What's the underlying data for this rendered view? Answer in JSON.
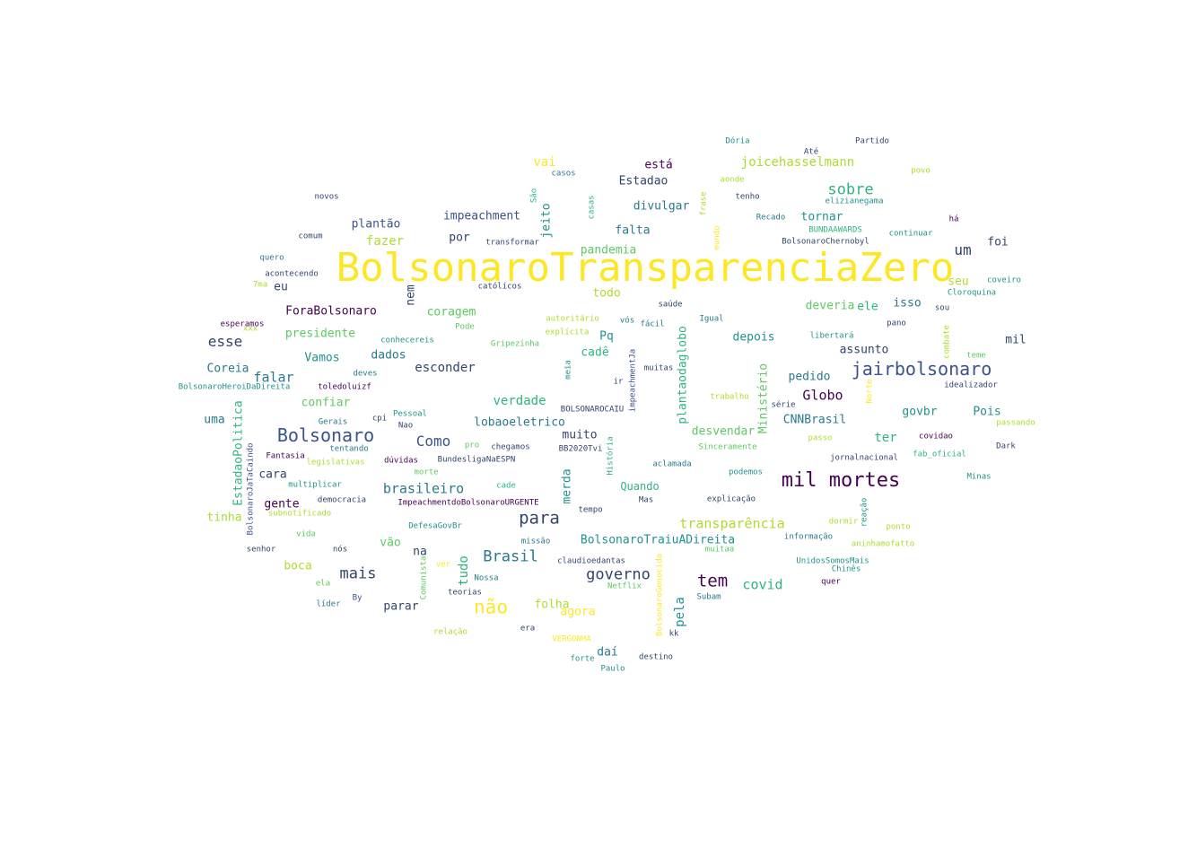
{
  "palette": {
    "dark_purple": "#440154",
    "indigo": "#3b528b",
    "navy": "#31446b",
    "blue": "#2a788e",
    "teal": "#21918c",
    "green": "#2fb47c",
    "light_green": "#5ec962",
    "lime": "#addc30",
    "yellow": "#fde725"
  },
  "words": [
    {
      "text": "BolsonaroTransparenciaZero",
      "size": 44,
      "color": "yellow"
    },
    {
      "text": "mil mortes",
      "size": 22,
      "color": "dark_purple"
    },
    {
      "text": "jairbolsonaro",
      "size": 20,
      "color": "indigo"
    },
    {
      "text": "Bolsonaro",
      "size": 20,
      "color": "indigo"
    },
    {
      "text": "não",
      "size": 21,
      "color": "yellow"
    },
    {
      "text": "para",
      "size": 19,
      "color": "navy"
    },
    {
      "text": "tem",
      "size": 19,
      "color": "dark_purple"
    },
    {
      "text": "Brasil",
      "size": 17,
      "color": "blue"
    },
    {
      "text": "sobre",
      "size": 17,
      "color": "green"
    },
    {
      "text": "governo",
      "size": 17,
      "color": "navy"
    },
    {
      "text": "mais",
      "size": 17,
      "color": "navy"
    },
    {
      "text": "Como",
      "size": 16,
      "color": "indigo"
    },
    {
      "text": "um",
      "size": 16,
      "color": "navy"
    },
    {
      "text": "esse",
      "size": 16,
      "color": "navy"
    },
    {
      "text": "Globo",
      "size": 15,
      "color": "dark_purple"
    },
    {
      "text": "falar",
      "size": 15,
      "color": "blue"
    },
    {
      "text": "covid",
      "size": 15,
      "color": "green"
    },
    {
      "text": "brasileiro",
      "size": 15,
      "color": "blue"
    },
    {
      "text": "transparência",
      "size": 15,
      "color": "lime"
    },
    {
      "text": "joicehasselmann",
      "size": 14,
      "color": "lime"
    },
    {
      "text": "verdade",
      "size": 14,
      "color": "green"
    },
    {
      "text": "esconder",
      "size": 14,
      "color": "navy"
    },
    {
      "text": "ter",
      "size": 14,
      "color": "green"
    },
    {
      "text": "vai",
      "size": 14,
      "color": "yellow"
    },
    {
      "text": "fazer",
      "size": 14,
      "color": "lime"
    },
    {
      "text": "tudo",
      "size": 14,
      "color": "green"
    },
    {
      "text": "pela",
      "size": 14,
      "color": "teal"
    },
    {
      "text": "Quando",
      "size": 12,
      "color": "green"
    },
    {
      "text": "isso",
      "size": 13,
      "color": "blue"
    },
    {
      "text": "muito",
      "size": 13,
      "color": "navy"
    },
    {
      "text": "desvendar",
      "size": 13,
      "color": "light_green"
    },
    {
      "text": "CNNBrasil",
      "size": 13,
      "color": "blue"
    },
    {
      "text": "pedido",
      "size": 13,
      "color": "blue"
    },
    {
      "text": "falta",
      "size": 13,
      "color": "blue"
    },
    {
      "text": "divulgar",
      "size": 13,
      "color": "blue"
    },
    {
      "text": "impeachment",
      "size": 13,
      "color": "indigo"
    },
    {
      "text": "plantão",
      "size": 13,
      "color": "indigo"
    },
    {
      "text": "coragem",
      "size": 13,
      "color": "light_green"
    },
    {
      "text": "presidente",
      "size": 13,
      "color": "light_green"
    },
    {
      "text": "ForaBolsonaro",
      "size": 13,
      "color": "dark_purple"
    },
    {
      "text": "Coreia",
      "size": 13,
      "color": "blue"
    },
    {
      "text": "Vamos",
      "size": 13,
      "color": "teal"
    },
    {
      "text": "dados",
      "size": 13,
      "color": "blue"
    },
    {
      "text": "confiar",
      "size": 13,
      "color": "light_green"
    },
    {
      "text": "lobaoeletrico",
      "size": 13,
      "color": "blue"
    },
    {
      "text": "Pq",
      "size": 13,
      "color": "teal"
    },
    {
      "text": "cadê",
      "size": 13,
      "color": "green"
    },
    {
      "text": "pandemia",
      "size": 13,
      "color": "light_green"
    },
    {
      "text": "todo",
      "size": 13,
      "color": "lime"
    },
    {
      "text": "deveria",
      "size": 13,
      "color": "light_green"
    },
    {
      "text": "ele",
      "size": 13,
      "color": "green"
    },
    {
      "text": "depois",
      "size": 13,
      "color": "teal"
    },
    {
      "text": "assunto",
      "size": 13,
      "color": "navy"
    },
    {
      "text": "tornar",
      "size": 13,
      "color": "teal"
    },
    {
      "text": "Estadao",
      "size": 13,
      "color": "navy"
    },
    {
      "text": "está",
      "size": 13,
      "color": "dark_purple"
    },
    {
      "text": "por",
      "size": 13,
      "color": "navy"
    },
    {
      "text": "foi",
      "size": 13,
      "color": "navy"
    },
    {
      "text": "mil",
      "size": 13,
      "color": "navy"
    },
    {
      "text": "seu",
      "size": 13,
      "color": "lime"
    },
    {
      "text": "govbr",
      "size": 13,
      "color": "teal"
    },
    {
      "text": "Pois",
      "size": 13,
      "color": "teal"
    },
    {
      "text": "eu",
      "size": 13,
      "color": "navy"
    },
    {
      "text": "uma",
      "size": 13,
      "color": "blue"
    },
    {
      "text": "cara",
      "size": 13,
      "color": "navy"
    },
    {
      "text": "gente",
      "size": 13,
      "color": "dark_purple"
    },
    {
      "text": "tinha",
      "size": 13,
      "color": "lime"
    },
    {
      "text": "vão",
      "size": 13,
      "color": "light_green"
    },
    {
      "text": "na",
      "size": 13,
      "color": "navy"
    },
    {
      "text": "boca",
      "size": 13,
      "color": "lime"
    },
    {
      "text": "parar",
      "size": 13,
      "color": "navy"
    },
    {
      "text": "folha",
      "size": 13,
      "color": "lime"
    },
    {
      "text": "agora",
      "size": 13,
      "color": "yellow"
    },
    {
      "text": "daí",
      "size": 13,
      "color": "blue"
    },
    {
      "text": "BolsonaroTraiuADireita",
      "size": 13,
      "color": "teal"
    },
    {
      "text": "nem",
      "size": 13,
      "color": "navy"
    },
    {
      "text": "jeito",
      "size": 13,
      "color": "teal"
    },
    {
      "text": "merda",
      "size": 13,
      "color": "teal"
    },
    {
      "text": "plantaodaglobo",
      "size": 13,
      "color": "green"
    },
    {
      "text": "Ministério",
      "size": 13,
      "color": "light_green"
    },
    {
      "text": "EstadaoPolitica",
      "size": 13,
      "color": "green"
    },
    {
      "text": "Dória",
      "size": 9,
      "color": "teal"
    },
    {
      "text": "Partido",
      "size": 9,
      "color": "navy"
    },
    {
      "text": "Até",
      "size": 9,
      "color": "navy"
    },
    {
      "text": "casos",
      "size": 9,
      "color": "blue"
    },
    {
      "text": "aonde",
      "size": 9,
      "color": "lime"
    },
    {
      "text": "povo",
      "size": 9,
      "color": "lime"
    },
    {
      "text": "novos",
      "size": 9,
      "color": "navy"
    },
    {
      "text": "tenho",
      "size": 9,
      "color": "navy"
    },
    {
      "text": "elizianegama",
      "size": 9,
      "color": "teal"
    },
    {
      "text": "Recado",
      "size": 9,
      "color": "blue"
    },
    {
      "text": "há",
      "size": 9,
      "color": "dark_purple"
    },
    {
      "text": "comum",
      "size": 9,
      "color": "navy"
    },
    {
      "text": "BUNDAAWARDS",
      "size": 9,
      "color": "green"
    },
    {
      "text": "continuar",
      "size": 9,
      "color": "teal"
    },
    {
      "text": "transformar",
      "size": 9,
      "color": "navy"
    },
    {
      "text": "BolsonaroChernobyl",
      "size": 9,
      "color": "navy"
    },
    {
      "text": "quero",
      "size": 9,
      "color": "blue"
    },
    {
      "text": "acontecendo",
      "size": 9,
      "color": "navy"
    },
    {
      "text": "7ma",
      "size": 9,
      "color": "lime"
    },
    {
      "text": "católicos",
      "size": 9,
      "color": "navy"
    },
    {
      "text": "coveiro",
      "size": 9,
      "color": "teal"
    },
    {
      "text": "Cloroquina",
      "size": 9,
      "color": "teal"
    },
    {
      "text": "saúde",
      "size": 9,
      "color": "navy"
    },
    {
      "text": "sou",
      "size": 9,
      "color": "navy"
    },
    {
      "text": "autoritário",
      "size": 9,
      "color": "lime"
    },
    {
      "text": "vós",
      "size": 9,
      "color": "blue"
    },
    {
      "text": "Igual",
      "size": 9,
      "color": "blue"
    },
    {
      "text": "esperamos",
      "size": 9,
      "color": "dark_purple"
    },
    {
      "text": "xxx",
      "size": 9,
      "color": "lime"
    },
    {
      "text": "Pode",
      "size": 9,
      "color": "light_green"
    },
    {
      "text": "explícita",
      "size": 9,
      "color": "lime"
    },
    {
      "text": "fácil",
      "size": 9,
      "color": "blue"
    },
    {
      "text": "pano",
      "size": 9,
      "color": "navy"
    },
    {
      "text": "libertará",
      "size": 9,
      "color": "teal"
    },
    {
      "text": "conhecereis",
      "size": 9,
      "color": "teal"
    },
    {
      "text": "Gripezinha",
      "size": 9,
      "color": "light_green"
    },
    {
      "text": "teme",
      "size": 9,
      "color": "light_green"
    },
    {
      "text": "deves",
      "size": 9,
      "color": "blue"
    },
    {
      "text": "muitas",
      "size": 9,
      "color": "navy"
    },
    {
      "text": "ir",
      "size": 9,
      "color": "navy"
    },
    {
      "text": "BolsonaroHeroiDaDireita",
      "size": 9,
      "color": "teal"
    },
    {
      "text": "toledoluizf",
      "size": 9,
      "color": "dark_purple"
    },
    {
      "text": "trabalho",
      "size": 9,
      "color": "lime"
    },
    {
      "text": "idealizador",
      "size": 9,
      "color": "navy"
    },
    {
      "text": "série",
      "size": 9,
      "color": "navy"
    },
    {
      "text": "Pessoal",
      "size": 9,
      "color": "teal"
    },
    {
      "text": "cpi",
      "size": 9,
      "color": "navy"
    },
    {
      "text": "Gerais",
      "size": 9,
      "color": "blue"
    },
    {
      "text": "Nao",
      "size": 9,
      "color": "navy"
    },
    {
      "text": "BOLSONAROCAIU",
      "size": 9,
      "color": "navy"
    },
    {
      "text": "passando",
      "size": 9,
      "color": "lime"
    },
    {
      "text": "tentando",
      "size": 9,
      "color": "blue"
    },
    {
      "text": "pro",
      "size": 9,
      "color": "light_green"
    },
    {
      "text": "chegamos",
      "size": 9,
      "color": "navy"
    },
    {
      "text": "BB2020Tvi",
      "size": 9,
      "color": "navy"
    },
    {
      "text": "Sinceramente",
      "size": 9,
      "color": "light_green"
    },
    {
      "text": "passo",
      "size": 9,
      "color": "lime"
    },
    {
      "text": "covidao",
      "size": 9,
      "color": "dark_purple"
    },
    {
      "text": "Dark",
      "size": 9,
      "color": "navy"
    },
    {
      "text": "Fantasia",
      "size": 9,
      "color": "dark_purple"
    },
    {
      "text": "legislativas",
      "size": 9,
      "color": "lime"
    },
    {
      "text": "dúvidas",
      "size": 9,
      "color": "dark_purple"
    },
    {
      "text": "BundesligaNaESPN",
      "size": 9,
      "color": "navy"
    },
    {
      "text": "aclamada",
      "size": 9,
      "color": "blue"
    },
    {
      "text": "jornalnacional",
      "size": 9,
      "color": "navy"
    },
    {
      "text": "fab_oficial",
      "size": 9,
      "color": "green"
    },
    {
      "text": "morte",
      "size": 9,
      "color": "light_green"
    },
    {
      "text": "podemos",
      "size": 9,
      "color": "teal"
    },
    {
      "text": "Minas",
      "size": 9,
      "color": "teal"
    },
    {
      "text": "multiplicar",
      "size": 9,
      "color": "teal"
    },
    {
      "text": "cade",
      "size": 9,
      "color": "green"
    },
    {
      "text": "democracia",
      "size": 9,
      "color": "navy"
    },
    {
      "text": "Mas",
      "size": 9,
      "color": "navy"
    },
    {
      "text": "explicação",
      "size": 9,
      "color": "navy"
    },
    {
      "text": "ImpeachmentdoBolsonaroURGENTE",
      "size": 9,
      "color": "dark_purple"
    },
    {
      "text": "subnotificado",
      "size": 9,
      "color": "lime"
    },
    {
      "text": "tempo",
      "size": 9,
      "color": "navy"
    },
    {
      "text": "dormir",
      "size": 9,
      "color": "lime"
    },
    {
      "text": "DefesaGovBr",
      "size": 9,
      "color": "teal"
    },
    {
      "text": "ponto",
      "size": 9,
      "color": "lime"
    },
    {
      "text": "vida",
      "size": 9,
      "color": "light_green"
    },
    {
      "text": "informação",
      "size": 9,
      "color": "blue"
    },
    {
      "text": "senhor",
      "size": 9,
      "color": "navy"
    },
    {
      "text": "nós",
      "size": 9,
      "color": "navy"
    },
    {
      "text": "missão",
      "size": 9,
      "color": "blue"
    },
    {
      "text": "muitaa",
      "size": 9,
      "color": "light_green"
    },
    {
      "text": "aninhamofatto",
      "size": 9,
      "color": "lime"
    },
    {
      "text": "claudioedantas",
      "size": 9,
      "color": "navy"
    },
    {
      "text": "UnidosSomosMais",
      "size": 9,
      "color": "teal"
    },
    {
      "text": "ver",
      "size": 9,
      "color": "yellow"
    },
    {
      "text": "Chinês",
      "size": 9,
      "color": "teal"
    },
    {
      "text": "Nossa",
      "size": 9,
      "color": "blue"
    },
    {
      "text": "Netflix",
      "size": 9,
      "color": "light_green"
    },
    {
      "text": "quer",
      "size": 9,
      "color": "dark_purple"
    },
    {
      "text": "ela",
      "size": 9,
      "color": "light_green"
    },
    {
      "text": "teorias",
      "size": 9,
      "color": "navy"
    },
    {
      "text": "Subam",
      "size": 9,
      "color": "blue"
    },
    {
      "text": "líder",
      "size": 9,
      "color": "blue"
    },
    {
      "text": "By",
      "size": 9,
      "color": "indigo"
    },
    {
      "text": "relação",
      "size": 9,
      "color": "lime"
    },
    {
      "text": "era",
      "size": 9,
      "color": "navy"
    },
    {
      "text": "kk",
      "size": 9,
      "color": "navy"
    },
    {
      "text": "VERGONHA",
      "size": 9,
      "color": "yellow"
    },
    {
      "text": "forte",
      "size": 9,
      "color": "teal"
    },
    {
      "text": "destino",
      "size": 9,
      "color": "navy"
    },
    {
      "text": "Paulo",
      "size": 9,
      "color": "teal"
    },
    {
      "text": "São",
      "size": 9,
      "color": "green"
    },
    {
      "text": "casas",
      "size": 9,
      "color": "green"
    },
    {
      "text": "frase",
      "size": 9,
      "color": "lime"
    },
    {
      "text": "mundo",
      "size": 9,
      "color": "yellow"
    },
    {
      "text": "combate",
      "size": 9,
      "color": "lime"
    },
    {
      "text": "Norte",
      "size": 9,
      "color": "yellow"
    },
    {
      "text": "meia",
      "size": 9,
      "color": "teal"
    },
    {
      "text": "impeachmentJa",
      "size": 9,
      "color": "indigo"
    },
    {
      "text": "História",
      "size": 9,
      "color": "green"
    },
    {
      "text": "BolsonaroJaTaCaindo",
      "size": 9,
      "color": "indigo"
    },
    {
      "text": "Comunista",
      "size": 9,
      "color": "light_green"
    },
    {
      "text": "BolsonaroGenocida",
      "size": 9,
      "color": "yellow"
    },
    {
      "text": "reação",
      "size": 9,
      "color": "teal"
    }
  ]
}
